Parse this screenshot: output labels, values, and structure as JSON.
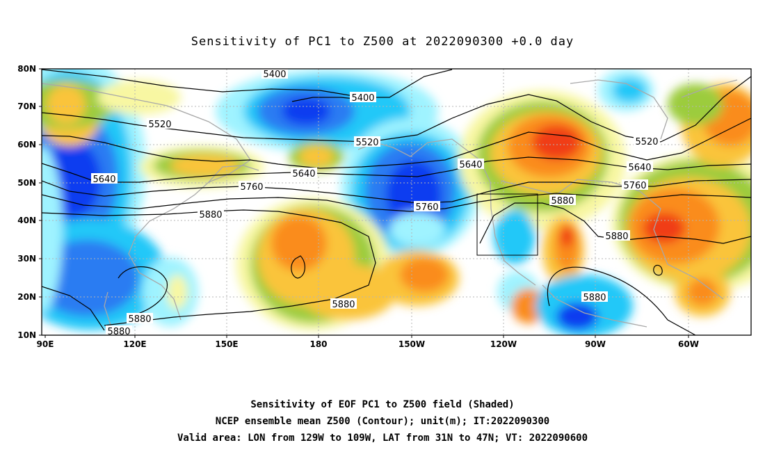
{
  "title": "Sensitivity of PC1 to Z500 at 2022090300 +0.0 day",
  "captions": [
    "Sensitivity of EOF PC1 to Z500 field (Shaded)",
    "NCEP ensemble mean Z500 (Contour); unit(m); IT:2022090300",
    "Valid area: LON from 129W to 109W, LAT from 31N to 47N; VT: 2022090600"
  ],
  "map": {
    "lon_ticks": [
      "90E",
      "120E",
      "150E",
      "180",
      "150W",
      "120W",
      "90W",
      "60W"
    ],
    "lat_ticks": [
      "10N",
      "20N",
      "30N",
      "40N",
      "50N",
      "60N",
      "70N",
      "80N"
    ],
    "grid": true,
    "valid_box": {
      "lon_from": "129W",
      "lon_to": "109W",
      "lat_from": "31N",
      "lat_to": "47N"
    }
  },
  "contour_labels": [
    "5400",
    "5400",
    "5520",
    "5520",
    "5520",
    "5640",
    "5640",
    "5640",
    "5640",
    "5760",
    "5760",
    "5760",
    "5880",
    "5880",
    "5880",
    "5880",
    "5880",
    "5880",
    "5880"
  ],
  "colors": {
    "deep_blue": "#0a3cf0",
    "blue": "#2c7cf2",
    "light_blue": "#22c8f8",
    "cyan": "#9ff3ff",
    "yellow": "#f8f7a2",
    "green": "#9ccc3c",
    "gold": "#fac43a",
    "orange": "#fa8c1e",
    "red": "#f03c14"
  }
}
